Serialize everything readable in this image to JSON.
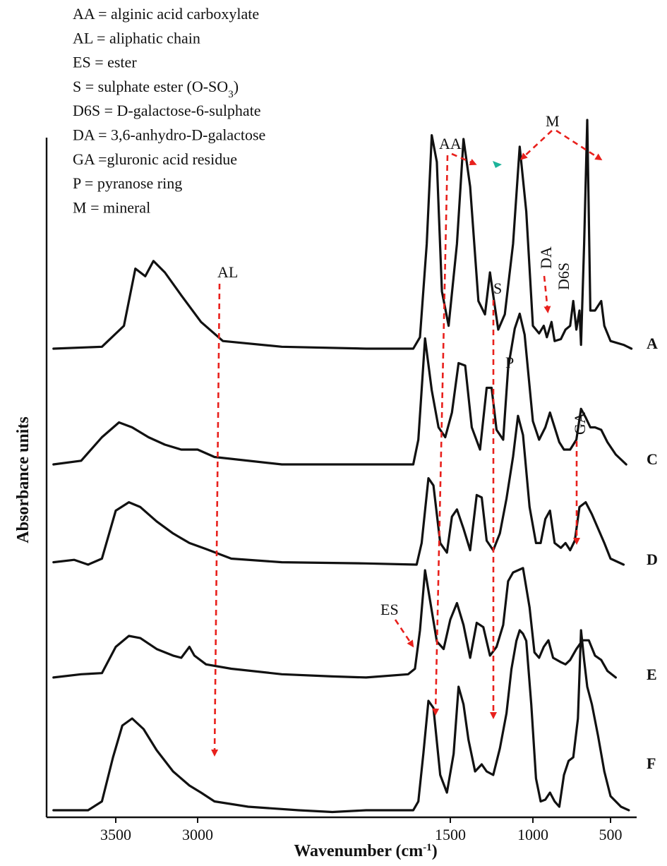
{
  "legend": [
    {
      "abbr": "AA",
      "sep": " = ",
      "text": " alginic acid carboxylate"
    },
    {
      "abbr": "AL",
      "sep": " = ",
      "text": "aliphatic chain"
    },
    {
      "abbr": "ES",
      "sep": " = ",
      "text": "ester"
    },
    {
      "abbr": "S",
      "sep": " = ",
      "text": "sulphate ester (O-SO",
      "sub": "3",
      "tail": ")"
    },
    {
      "abbr": "D6S",
      "sep": " = ",
      "text": "D-galactose-6-sulphate"
    },
    {
      "abbr": "DA",
      "sep": " = ",
      "text": "3,6-anhydro-D-galactose"
    },
    {
      "abbr": "GA",
      "sep": " =",
      "text": "gluronic acid residue"
    },
    {
      "abbr": "P",
      "sep": " = ",
      "text": "pyranose ring"
    },
    {
      "abbr": "M",
      "sep": " = ",
      "text": "mineral"
    }
  ],
  "chart_data": {
    "type": "line",
    "xlabel": "Wavenumber (cm",
    "xlabel_sup": "-1",
    "xlabel_tail": ")",
    "ylabel": "Absorbance units",
    "x_reversed": true,
    "xlim": [
      4000,
      400
    ],
    "x_ticks": [
      3500,
      3000,
      1500,
      1000,
      500
    ],
    "series": [
      {
        "name": "A",
        "offset": 0,
        "points": [
          [
            3950,
            0
          ],
          [
            3600,
            0.01
          ],
          [
            3450,
            0.12
          ],
          [
            3380,
            0.42
          ],
          [
            3320,
            0.38
          ],
          [
            3270,
            0.46
          ],
          [
            3200,
            0.4
          ],
          [
            3100,
            0.28
          ],
          [
            2980,
            0.14
          ],
          [
            2850,
            0.04
          ],
          [
            2500,
            0.01
          ],
          [
            2000,
            0.0
          ],
          [
            1720,
            0.0
          ],
          [
            1680,
            0.06
          ],
          [
            1640,
            0.55
          ],
          [
            1610,
            1.12
          ],
          [
            1580,
            0.98
          ],
          [
            1550,
            0.3
          ],
          [
            1510,
            0.12
          ],
          [
            1460,
            0.55
          ],
          [
            1420,
            1.1
          ],
          [
            1380,
            0.85
          ],
          [
            1330,
            0.25
          ],
          [
            1290,
            0.18
          ],
          [
            1260,
            0.4
          ],
          [
            1240,
            0.28
          ],
          [
            1210,
            0.1
          ],
          [
            1170,
            0.18
          ],
          [
            1120,
            0.55
          ],
          [
            1080,
            1.06
          ],
          [
            1040,
            0.72
          ],
          [
            1000,
            0.12
          ],
          [
            960,
            0.08
          ],
          [
            930,
            0.12
          ],
          [
            910,
            0.06
          ],
          [
            880,
            0.14
          ],
          [
            860,
            0.04
          ],
          [
            820,
            0.05
          ],
          [
            790,
            0.1
          ],
          [
            760,
            0.12
          ],
          [
            740,
            0.25
          ],
          [
            720,
            0.1
          ],
          [
            700,
            0.2
          ],
          [
            690,
            0.02
          ],
          [
            670,
            0.55
          ],
          [
            650,
            1.2
          ],
          [
            630,
            0.2
          ],
          [
            600,
            0.2
          ],
          [
            560,
            0.25
          ],
          [
            540,
            0.12
          ],
          [
            500,
            0.04
          ],
          [
            450,
            0.02
          ],
          [
            420,
            0.0
          ]
        ]
      },
      {
        "name": "C",
        "offset": 1,
        "points": [
          [
            3950,
            0
          ],
          [
            3750,
            0.03
          ],
          [
            3600,
            0.22
          ],
          [
            3480,
            0.34
          ],
          [
            3400,
            0.3
          ],
          [
            3300,
            0.22
          ],
          [
            3200,
            0.16
          ],
          [
            3100,
            0.12
          ],
          [
            3000,
            0.12
          ],
          [
            2900,
            0.06
          ],
          [
            2500,
            0.0
          ],
          [
            2000,
            0.0
          ],
          [
            1720,
            0.0
          ],
          [
            1690,
            0.2
          ],
          [
            1650,
            1.02
          ],
          [
            1610,
            0.6
          ],
          [
            1570,
            0.3
          ],
          [
            1530,
            0.22
          ],
          [
            1490,
            0.42
          ],
          [
            1450,
            0.82
          ],
          [
            1410,
            0.8
          ],
          [
            1370,
            0.3
          ],
          [
            1320,
            0.12
          ],
          [
            1280,
            0.62
          ],
          [
            1250,
            0.62
          ],
          [
            1220,
            0.28
          ],
          [
            1180,
            0.2
          ],
          [
            1150,
            0.78
          ],
          [
            1110,
            1.1
          ],
          [
            1080,
            1.22
          ],
          [
            1050,
            1.05
          ],
          [
            1000,
            0.35
          ],
          [
            960,
            0.2
          ],
          [
            920,
            0.3
          ],
          [
            890,
            0.42
          ],
          [
            860,
            0.3
          ],
          [
            830,
            0.18
          ],
          [
            800,
            0.12
          ],
          [
            760,
            0.12
          ],
          [
            720,
            0.2
          ],
          [
            690,
            0.45
          ],
          [
            660,
            0.38
          ],
          [
            630,
            0.3
          ],
          [
            600,
            0.3
          ],
          [
            560,
            0.28
          ],
          [
            520,
            0.18
          ],
          [
            480,
            0.08
          ],
          [
            440,
            0.0
          ]
        ]
      },
      {
        "name": "D",
        "offset": 2,
        "points": [
          [
            3950,
            0.02
          ],
          [
            3800,
            0.04
          ],
          [
            3700,
            0.0
          ],
          [
            3600,
            0.05
          ],
          [
            3500,
            0.45
          ],
          [
            3420,
            0.52
          ],
          [
            3350,
            0.48
          ],
          [
            3250,
            0.36
          ],
          [
            3150,
            0.26
          ],
          [
            3050,
            0.18
          ],
          [
            2950,
            0.13
          ],
          [
            2800,
            0.05
          ],
          [
            2500,
            0.02
          ],
          [
            2000,
            0.01
          ],
          [
            1700,
            0.0
          ],
          [
            1670,
            0.18
          ],
          [
            1630,
            0.72
          ],
          [
            1600,
            0.66
          ],
          [
            1560,
            0.18
          ],
          [
            1520,
            0.1
          ],
          [
            1490,
            0.4
          ],
          [
            1460,
            0.46
          ],
          [
            1420,
            0.3
          ],
          [
            1380,
            0.12
          ],
          [
            1340,
            0.58
          ],
          [
            1310,
            0.56
          ],
          [
            1280,
            0.2
          ],
          [
            1240,
            0.12
          ],
          [
            1200,
            0.26
          ],
          [
            1160,
            0.55
          ],
          [
            1120,
            0.9
          ],
          [
            1090,
            1.24
          ],
          [
            1060,
            1.08
          ],
          [
            1020,
            0.48
          ],
          [
            980,
            0.18
          ],
          [
            950,
            0.18
          ],
          [
            920,
            0.38
          ],
          [
            890,
            0.45
          ],
          [
            860,
            0.18
          ],
          [
            820,
            0.14
          ],
          [
            790,
            0.18
          ],
          [
            760,
            0.12
          ],
          [
            730,
            0.2
          ],
          [
            700,
            0.48
          ],
          [
            660,
            0.52
          ],
          [
            620,
            0.42
          ],
          [
            580,
            0.3
          ],
          [
            540,
            0.18
          ],
          [
            500,
            0.05
          ],
          [
            450,
            0.0
          ]
        ]
      },
      {
        "name": "E",
        "offset": 3,
        "points": [
          [
            3950,
            0.02
          ],
          [
            3750,
            0.05
          ],
          [
            3600,
            0.06
          ],
          [
            3500,
            0.3
          ],
          [
            3420,
            0.4
          ],
          [
            3350,
            0.38
          ],
          [
            3250,
            0.28
          ],
          [
            3150,
            0.22
          ],
          [
            3100,
            0.2
          ],
          [
            3050,
            0.3
          ],
          [
            3020,
            0.22
          ],
          [
            2950,
            0.14
          ],
          [
            2800,
            0.1
          ],
          [
            2500,
            0.05
          ],
          [
            2200,
            0.03
          ],
          [
            2000,
            0.02
          ],
          [
            1750,
            0.05
          ],
          [
            1710,
            0.1
          ],
          [
            1680,
            0.45
          ],
          [
            1650,
            1.0
          ],
          [
            1620,
            0.72
          ],
          [
            1580,
            0.35
          ],
          [
            1540,
            0.28
          ],
          [
            1500,
            0.55
          ],
          [
            1460,
            0.7
          ],
          [
            1420,
            0.5
          ],
          [
            1380,
            0.2
          ],
          [
            1340,
            0.52
          ],
          [
            1300,
            0.48
          ],
          [
            1260,
            0.22
          ],
          [
            1220,
            0.3
          ],
          [
            1180,
            0.5
          ],
          [
            1150,
            0.9
          ],
          [
            1120,
            0.98
          ],
          [
            1090,
            1.0
          ],
          [
            1060,
            1.02
          ],
          [
            1020,
            0.66
          ],
          [
            990,
            0.25
          ],
          [
            960,
            0.2
          ],
          [
            930,
            0.3
          ],
          [
            900,
            0.36
          ],
          [
            870,
            0.2
          ],
          [
            820,
            0.16
          ],
          [
            790,
            0.14
          ],
          [
            760,
            0.18
          ],
          [
            720,
            0.28
          ],
          [
            680,
            0.36
          ],
          [
            640,
            0.36
          ],
          [
            600,
            0.22
          ],
          [
            560,
            0.18
          ],
          [
            520,
            0.08
          ],
          [
            480,
            0.02
          ]
        ]
      },
      {
        "name": "F",
        "offset": 4,
        "points": [
          [
            3950,
            0
          ],
          [
            3700,
            0.0
          ],
          [
            3600,
            0.05
          ],
          [
            3520,
            0.3
          ],
          [
            3460,
            0.48
          ],
          [
            3400,
            0.52
          ],
          [
            3330,
            0.46
          ],
          [
            3250,
            0.34
          ],
          [
            3150,
            0.22
          ],
          [
            3050,
            0.14
          ],
          [
            2980,
            0.1
          ],
          [
            2900,
            0.05
          ],
          [
            2700,
            0.02
          ],
          [
            2400,
            0.0
          ],
          [
            2200,
            -0.01
          ],
          [
            2000,
            0.0
          ],
          [
            1720,
            0.0
          ],
          [
            1690,
            0.05
          ],
          [
            1660,
            0.32
          ],
          [
            1630,
            0.62
          ],
          [
            1600,
            0.58
          ],
          [
            1560,
            0.2
          ],
          [
            1520,
            0.1
          ],
          [
            1480,
            0.32
          ],
          [
            1450,
            0.7
          ],
          [
            1420,
            0.6
          ],
          [
            1390,
            0.4
          ],
          [
            1350,
            0.22
          ],
          [
            1310,
            0.26
          ],
          [
            1280,
            0.22
          ],
          [
            1240,
            0.2
          ],
          [
            1200,
            0.35
          ],
          [
            1160,
            0.55
          ],
          [
            1130,
            0.8
          ],
          [
            1100,
            0.96
          ],
          [
            1080,
            1.02
          ],
          [
            1060,
            1.0
          ],
          [
            1040,
            0.96
          ],
          [
            1010,
            0.6
          ],
          [
            980,
            0.18
          ],
          [
            950,
            0.05
          ],
          [
            920,
            0.06
          ],
          [
            890,
            0.1
          ],
          [
            860,
            0.05
          ],
          [
            830,
            0.02
          ],
          [
            800,
            0.2
          ],
          [
            770,
            0.28
          ],
          [
            740,
            0.3
          ],
          [
            710,
            0.52
          ],
          [
            690,
            1.02
          ],
          [
            670,
            0.85
          ],
          [
            650,
            0.7
          ],
          [
            620,
            0.6
          ],
          [
            580,
            0.42
          ],
          [
            540,
            0.22
          ],
          [
            500,
            0.08
          ],
          [
            460,
            0.02
          ],
          [
            430,
            0.0
          ]
        ]
      }
    ],
    "annotations": [
      "AA",
      "AL",
      "ES",
      "S",
      "DA",
      "D6S",
      "P",
      "GA",
      "M"
    ]
  }
}
